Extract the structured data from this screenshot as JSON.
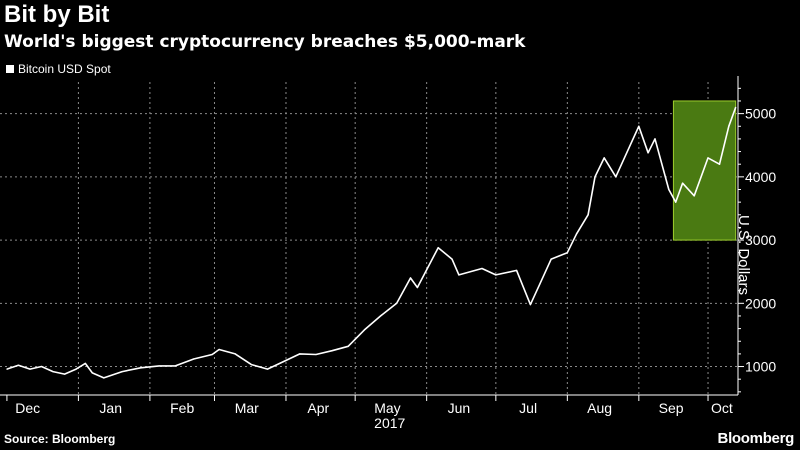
{
  "header": {
    "title": "Bit by Bit",
    "subtitle": "World's biggest cryptocurrency breaches $5,000-mark"
  },
  "footer": {
    "source": "Source: Bloomberg",
    "logo": "Bloomberg"
  },
  "colors": {
    "background": "#000000",
    "line": "#ffffff",
    "highlight_fill": "#4a7a12",
    "highlight_stroke": "#9ccd2c",
    "grid": "#8a8a8a"
  },
  "chart_data": {
    "type": "line",
    "title": "Bit by Bit",
    "subtitle": "World's biggest cryptocurrency breaches $5,000-mark",
    "ylabel": "U.S. Dollars",
    "xlabel": "",
    "ylim": [
      550,
      5500
    ],
    "y_ticks": [
      1000,
      2000,
      3000,
      4000,
      5000
    ],
    "x_ticks": [
      "Dec",
      "Jan",
      "Feb",
      "Mar",
      "Apr",
      "May",
      "Jun",
      "Jul",
      "Aug",
      "Sep",
      "Oct"
    ],
    "x_year_label": "2017",
    "grid": true,
    "legend_position": "top-left",
    "highlight": {
      "x_start": "2017-09-16",
      "x_end": "2017-10-13",
      "y_start": 3000,
      "y_end": 5200
    },
    "series": [
      {
        "name": "Bitcoin USD Spot",
        "x": [
          "2016-12-01",
          "2016-12-06",
          "2016-12-11",
          "2016-12-16",
          "2016-12-21",
          "2016-12-26",
          "2016-12-31",
          "2017-01-04",
          "2017-01-07",
          "2017-01-12",
          "2017-01-20",
          "2017-01-28",
          "2017-02-05",
          "2017-02-12",
          "2017-02-20",
          "2017-02-28",
          "2017-03-03",
          "2017-03-10",
          "2017-03-17",
          "2017-03-24",
          "2017-03-31",
          "2017-04-07",
          "2017-04-14",
          "2017-04-21",
          "2017-04-28",
          "2017-05-05",
          "2017-05-12",
          "2017-05-19",
          "2017-05-25",
          "2017-05-28",
          "2017-06-06",
          "2017-06-12",
          "2017-06-15",
          "2017-06-25",
          "2017-07-01",
          "2017-07-10",
          "2017-07-16",
          "2017-07-20",
          "2017-07-25",
          "2017-08-01",
          "2017-08-05",
          "2017-08-10",
          "2017-08-13",
          "2017-08-17",
          "2017-08-22",
          "2017-08-27",
          "2017-09-01",
          "2017-09-05",
          "2017-09-08",
          "2017-09-14",
          "2017-09-17",
          "2017-09-20",
          "2017-09-25",
          "2017-10-01",
          "2017-10-06",
          "2017-10-10",
          "2017-10-13"
        ],
        "values": [
          960,
          1020,
          960,
          1000,
          920,
          880,
          960,
          1050,
          900,
          820,
          920,
          980,
          1010,
          1010,
          1120,
          1190,
          1270,
          1200,
          1030,
          960,
          1080,
          1200,
          1190,
          1250,
          1320,
          1580,
          1800,
          2000,
          2400,
          2250,
          2880,
          2700,
          2450,
          2550,
          2450,
          2520,
          1980,
          2300,
          2700,
          2800,
          3100,
          3400,
          4000,
          4300,
          4000,
          4400,
          4800,
          4380,
          4600,
          3800,
          3600,
          3900,
          3700,
          4300,
          4200,
          4800,
          5100
        ]
      }
    ]
  }
}
